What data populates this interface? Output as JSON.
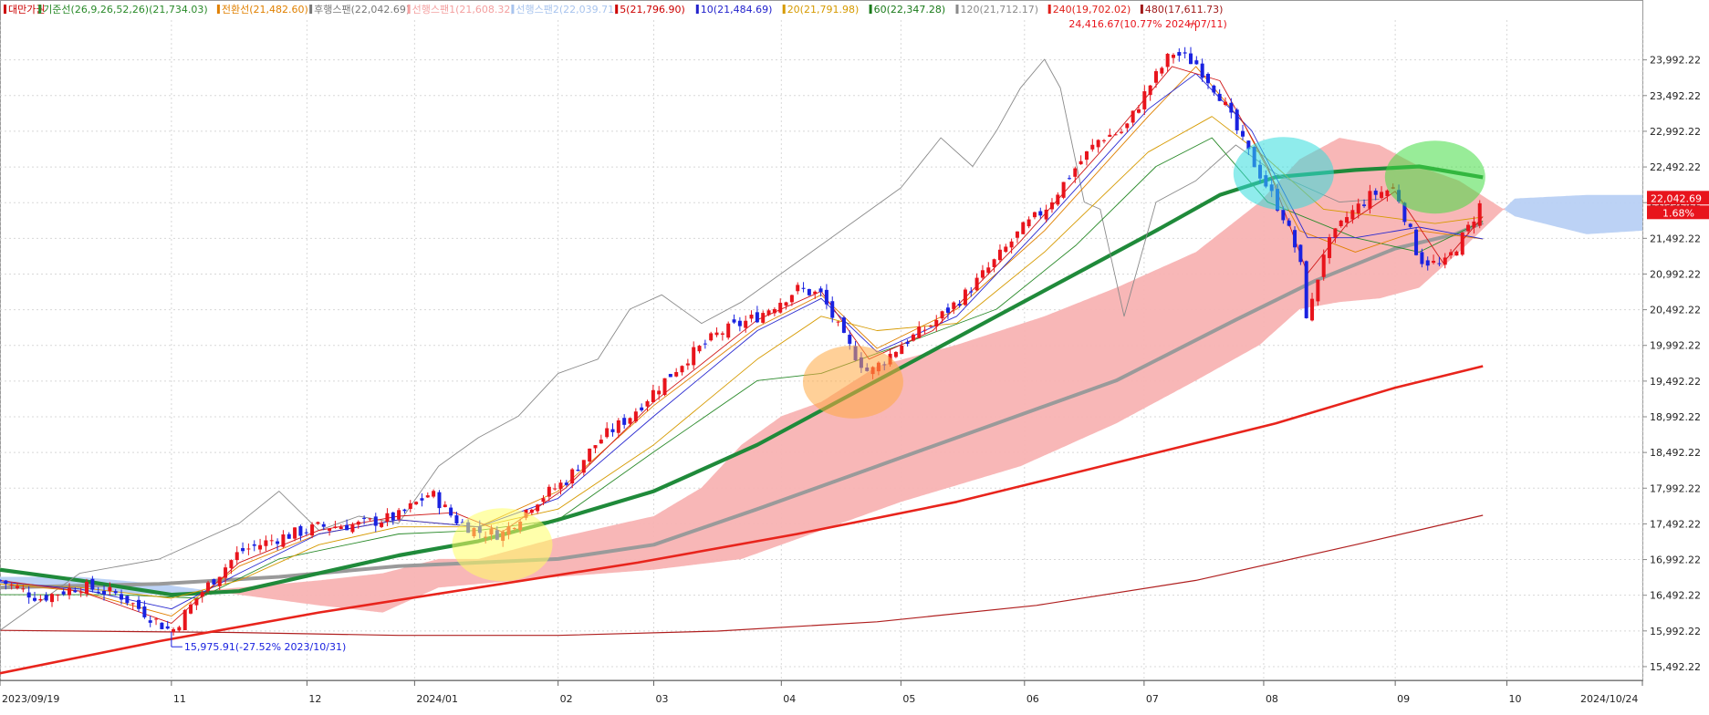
{
  "legend": [
    {
      "label": "대만가권",
      "color": "#cc0000"
    },
    {
      "label": "기준선(26,9,26,52,26)(21,734.03)",
      "color": "#2a8a2a"
    },
    {
      "label": "전환선(21,482.60)",
      "color": "#e08000"
    },
    {
      "label": "후행스팬(22,042.69)",
      "color": "#777777"
    },
    {
      "label": "선행스팬1(21,608.32)",
      "color": "#f4a0a0"
    },
    {
      "label": "선행스팬2(22,039.71)",
      "color": "#a8c4ee"
    },
    {
      "label": "5(21,796.90)",
      "color": "#cc0000"
    },
    {
      "label": "10(21,484.69)",
      "color": "#2222cc"
    },
    {
      "label": "20(21,791.98)",
      "color": "#d69a00"
    },
    {
      "label": "60(22,347.28)",
      "color": "#1a7a1a"
    },
    {
      "label": "120(21,712.17)",
      "color": "#8a8a8a"
    },
    {
      "label": "240(19,702.02)",
      "color": "#e0201a"
    },
    {
      "label": "480(17,611.73)",
      "color": "#a01a1a"
    }
  ],
  "annotations": {
    "high": "24,416.67(10.77% 2024/07/11)",
    "low": "15,975.91(-27.52% 2023/10/31)"
  },
  "price_badge": {
    "price": "22,042.69",
    "change": "1.68%"
  },
  "colors": {
    "up": "#e8141c",
    "down": "#1a22e0",
    "cloud_bull": "#f8b3b3",
    "cloud_bear": "#b8d0f4"
  },
  "chart_data": {
    "type": "candlestick",
    "y_ticks": [
      "15,492.22",
      "15,992.22",
      "16,492.22",
      "16,992.22",
      "17,492.22",
      "17,992.22",
      "18,492.22",
      "18,992.22",
      "19,492.22",
      "19,992.22",
      "20,492.22",
      "20,992.22",
      "21,492.22",
      "21,992.22",
      "22,492.22",
      "22,992.22",
      "23,492.22",
      "23,992.22"
    ],
    "y_tick_values": [
      15492.22,
      15992.22,
      16492.22,
      16992.22,
      17492.22,
      17992.22,
      18492.22,
      18992.22,
      19492.22,
      19992.22,
      20492.22,
      20992.22,
      21492.22,
      21992.22,
      22492.22,
      22992.22,
      23492.22,
      23992.22
    ],
    "ylim": [
      15300,
      24550
    ],
    "x_ticks": [
      "2023/09/19",
      "11",
      "12",
      "2024/01",
      "02",
      "03",
      "04",
      "05",
      "06",
      "07",
      "08",
      "09",
      "10",
      "2024/10/24"
    ],
    "x_tick_days": [
      0,
      43,
      77,
      104,
      140,
      164,
      196,
      226,
      257,
      287,
      317,
      350,
      378,
      412
    ],
    "x_range_days": [
      0,
      412
    ],
    "last_day": 372,
    "anchors": {
      "close": [
        [
          0,
          16700
        ],
        [
          10,
          16450
        ],
        [
          20,
          16620
        ],
        [
          30,
          16500
        ],
        [
          43,
          15980
        ],
        [
          50,
          16500
        ],
        [
          60,
          17100
        ],
        [
          70,
          17300
        ],
        [
          80,
          17450
        ],
        [
          90,
          17480
        ],
        [
          100,
          17600
        ],
        [
          108,
          17930
        ],
        [
          114,
          17560
        ],
        [
          120,
          17380
        ],
        [
          126,
          17350
        ],
        [
          134,
          17800
        ],
        [
          142,
          18100
        ],
        [
          150,
          18650
        ],
        [
          158,
          19000
        ],
        [
          164,
          19350
        ],
        [
          172,
          19800
        ],
        [
          180,
          20150
        ],
        [
          190,
          20400
        ],
        [
          200,
          20780
        ],
        [
          206,
          20700
        ],
        [
          212,
          20050
        ],
        [
          218,
          19600
        ],
        [
          226,
          20000
        ],
        [
          234,
          20300
        ],
        [
          242,
          20700
        ],
        [
          250,
          21200
        ],
        [
          256,
          21600
        ],
        [
          262,
          21900
        ],
        [
          270,
          22500
        ],
        [
          276,
          22900
        ],
        [
          282,
          23000
        ],
        [
          288,
          23600
        ],
        [
          294,
          24100
        ],
        [
          300,
          23950
        ],
        [
          306,
          23500
        ],
        [
          312,
          22800
        ],
        [
          318,
          22200
        ],
        [
          322,
          21800
        ],
        [
          326,
          21200
        ],
        [
          328,
          20300
        ],
        [
          332,
          21300
        ],
        [
          338,
          21800
        ],
        [
          344,
          22100
        ],
        [
          350,
          22200
        ],
        [
          356,
          21200
        ],
        [
          362,
          21100
        ],
        [
          368,
          21600
        ],
        [
          372,
          22042
        ]
      ],
      "tenkan": [
        [
          0,
          16650
        ],
        [
          20,
          16550
        ],
        [
          43,
          16200
        ],
        [
          60,
          16900
        ],
        [
          80,
          17350
        ],
        [
          100,
          17550
        ],
        [
          120,
          17450
        ],
        [
          140,
          17950
        ],
        [
          164,
          19150
        ],
        [
          190,
          20250
        ],
        [
          206,
          20700
        ],
        [
          220,
          19950
        ],
        [
          240,
          20500
        ],
        [
          262,
          21600
        ],
        [
          288,
          23200
        ],
        [
          300,
          23900
        ],
        [
          312,
          23100
        ],
        [
          326,
          21600
        ],
        [
          340,
          21300
        ],
        [
          356,
          21600
        ],
        [
          372,
          21482
        ]
      ],
      "kijun": [
        [
          0,
          16500
        ],
        [
          30,
          16500
        ],
        [
          50,
          16450
        ],
        [
          70,
          17000
        ],
        [
          100,
          17350
        ],
        [
          120,
          17400
        ],
        [
          140,
          17550
        ],
        [
          164,
          18500
        ],
        [
          190,
          19500
        ],
        [
          206,
          19600
        ],
        [
          226,
          20000
        ],
        [
          250,
          20500
        ],
        [
          270,
          21400
        ],
        [
          290,
          22500
        ],
        [
          304,
          22900
        ],
        [
          318,
          22000
        ],
        [
          340,
          21500
        ],
        [
          356,
          21300
        ],
        [
          372,
          21734
        ]
      ],
      "chikou": [
        [
          0,
          16000
        ],
        [
          20,
          16800
        ],
        [
          40,
          17000
        ],
        [
          60,
          17500
        ],
        [
          70,
          17950
        ],
        [
          80,
          17400
        ],
        [
          90,
          17600
        ],
        [
          100,
          17500
        ],
        [
          110,
          18300
        ],
        [
          120,
          18700
        ],
        [
          130,
          19000
        ],
        [
          140,
          19600
        ],
        [
          150,
          19800
        ],
        [
          158,
          20500
        ],
        [
          166,
          20700
        ],
        [
          176,
          20300
        ],
        [
          186,
          20600
        ],
        [
          196,
          21000
        ],
        [
          206,
          21400
        ],
        [
          216,
          21800
        ],
        [
          226,
          22200
        ],
        [
          236,
          22900
        ],
        [
          244,
          22500
        ],
        [
          250,
          23000
        ],
        [
          256,
          23600
        ],
        [
          262,
          24000
        ],
        [
          266,
          23600
        ],
        [
          272,
          22000
        ],
        [
          276,
          21900
        ],
        [
          282,
          20400
        ],
        [
          290,
          22000
        ],
        [
          300,
          22300
        ],
        [
          310,
          22800
        ],
        [
          320,
          22400
        ],
        [
          328,
          22200
        ],
        [
          336,
          22000
        ],
        [
          346,
          22042
        ]
      ],
      "spanA": [
        [
          0,
          16650
        ],
        [
          20,
          16550
        ],
        [
          40,
          16500
        ],
        [
          60,
          16600
        ],
        [
          80,
          16700
        ],
        [
          96,
          16800
        ],
        [
          110,
          17000
        ],
        [
          120,
          17000
        ],
        [
          140,
          17300
        ],
        [
          164,
          17600
        ],
        [
          176,
          18000
        ],
        [
          186,
          18600
        ],
        [
          196,
          19000
        ],
        [
          206,
          19200
        ],
        [
          220,
          19700
        ],
        [
          240,
          20000
        ],
        [
          262,
          20400
        ],
        [
          280,
          20800
        ],
        [
          300,
          21300
        ],
        [
          316,
          22000
        ],
        [
          326,
          22600
        ],
        [
          336,
          22900
        ],
        [
          346,
          22800
        ],
        [
          356,
          22500
        ],
        [
          366,
          22300
        ],
        [
          380,
          21800
        ],
        [
          398,
          21550
        ],
        [
          412,
          21600
        ]
      ],
      "spanB": [
        [
          0,
          16750
        ],
        [
          20,
          16750
        ],
        [
          40,
          16650
        ],
        [
          60,
          16500
        ],
        [
          80,
          16350
        ],
        [
          96,
          16250
        ],
        [
          110,
          16600
        ],
        [
          120,
          16650
        ],
        [
          140,
          16750
        ],
        [
          164,
          16850
        ],
        [
          186,
          17000
        ],
        [
          206,
          17400
        ],
        [
          226,
          17800
        ],
        [
          256,
          18300
        ],
        [
          280,
          18900
        ],
        [
          300,
          19500
        ],
        [
          316,
          20000
        ],
        [
          326,
          20500
        ],
        [
          336,
          20600
        ],
        [
          346,
          20650
        ],
        [
          356,
          20800
        ],
        [
          366,
          21300
        ],
        [
          380,
          22050
        ],
        [
          398,
          22100
        ],
        [
          412,
          22100
        ]
      ],
      "ma5": [
        [
          0,
          16700
        ],
        [
          20,
          16550
        ],
        [
          43,
          16100
        ],
        [
          60,
          16950
        ],
        [
          80,
          17400
        ],
        [
          100,
          17600
        ],
        [
          114,
          17650
        ],
        [
          126,
          17380
        ],
        [
          142,
          18000
        ],
        [
          164,
          19200
        ],
        [
          190,
          20350
        ],
        [
          206,
          20750
        ],
        [
          218,
          19800
        ],
        [
          234,
          20200
        ],
        [
          256,
          21450
        ],
        [
          276,
          22700
        ],
        [
          294,
          23900
        ],
        [
          306,
          23700
        ],
        [
          318,
          22500
        ],
        [
          328,
          21000
        ],
        [
          338,
          21700
        ],
        [
          350,
          22150
        ],
        [
          362,
          21150
        ],
        [
          372,
          21797
        ]
      ],
      "ma10": [
        [
          0,
          16680
        ],
        [
          20,
          16580
        ],
        [
          43,
          16300
        ],
        [
          60,
          16800
        ],
        [
          80,
          17350
        ],
        [
          100,
          17550
        ],
        [
          120,
          17450
        ],
        [
          140,
          17850
        ],
        [
          164,
          19000
        ],
        [
          190,
          20200
        ],
        [
          206,
          20650
        ],
        [
          220,
          19900
        ],
        [
          240,
          20400
        ],
        [
          262,
          21700
        ],
        [
          288,
          23300
        ],
        [
          300,
          23800
        ],
        [
          314,
          23000
        ],
        [
          328,
          21500
        ],
        [
          340,
          21500
        ],
        [
          356,
          21650
        ],
        [
          372,
          21485
        ]
      ],
      "ma20": [
        [
          0,
          16650
        ],
        [
          20,
          16600
        ],
        [
          43,
          16450
        ],
        [
          60,
          16700
        ],
        [
          80,
          17200
        ],
        [
          100,
          17450
        ],
        [
          120,
          17450
        ],
        [
          140,
          17700
        ],
        [
          164,
          18600
        ],
        [
          190,
          19800
        ],
        [
          206,
          20400
        ],
        [
          220,
          20200
        ],
        [
          240,
          20300
        ],
        [
          262,
          21300
        ],
        [
          288,
          22700
        ],
        [
          304,
          23200
        ],
        [
          318,
          22600
        ],
        [
          332,
          21900
        ],
        [
          346,
          21800
        ],
        [
          360,
          21700
        ],
        [
          372,
          21792
        ]
      ],
      "ma60": [
        [
          0,
          16850
        ],
        [
          20,
          16700
        ],
        [
          43,
          16500
        ],
        [
          60,
          16550
        ],
        [
          80,
          16800
        ],
        [
          100,
          17050
        ],
        [
          120,
          17250
        ],
        [
          140,
          17550
        ],
        [
          164,
          17950
        ],
        [
          190,
          18600
        ],
        [
          210,
          19200
        ],
        [
          230,
          19800
        ],
        [
          250,
          20400
        ],
        [
          270,
          21000
        ],
        [
          290,
          21600
        ],
        [
          306,
          22100
        ],
        [
          320,
          22350
        ],
        [
          340,
          22450
        ],
        [
          356,
          22500
        ],
        [
          372,
          22347
        ]
      ],
      "ma120": [
        [
          0,
          16600
        ],
        [
          40,
          16650
        ],
        [
          70,
          16750
        ],
        [
          100,
          16900
        ],
        [
          120,
          16950
        ],
        [
          140,
          17000
        ],
        [
          164,
          17200
        ],
        [
          190,
          17700
        ],
        [
          220,
          18300
        ],
        [
          250,
          18900
        ],
        [
          280,
          19500
        ],
        [
          310,
          20350
        ],
        [
          330,
          20900
        ],
        [
          350,
          21350
        ],
        [
          365,
          21550
        ],
        [
          372,
          21712
        ]
      ],
      "ma240": [
        [
          0,
          15400
        ],
        [
          40,
          15850
        ],
        [
          80,
          16250
        ],
        [
          120,
          16600
        ],
        [
          160,
          16950
        ],
        [
          200,
          17350
        ],
        [
          240,
          17800
        ],
        [
          280,
          18350
        ],
        [
          320,
          18900
        ],
        [
          350,
          19400
        ],
        [
          372,
          19702
        ]
      ],
      "ma480": [
        [
          0,
          16000
        ],
        [
          60,
          15970
        ],
        [
          100,
          15930
        ],
        [
          140,
          15930
        ],
        [
          180,
          15990
        ],
        [
          220,
          16120
        ],
        [
          260,
          16350
        ],
        [
          300,
          16700
        ],
        [
          340,
          17200
        ],
        [
          372,
          17612
        ]
      ]
    },
    "highlight_circles": [
      {
        "day": 126,
        "price": 17200,
        "color": "#ffff66"
      },
      {
        "day": 214,
        "price": 19480,
        "color": "#ffaa44"
      },
      {
        "day": 322,
        "price": 22400,
        "color": "#33dddd"
      },
      {
        "day": 360,
        "price": 22350,
        "color": "#44dd44"
      }
    ]
  }
}
